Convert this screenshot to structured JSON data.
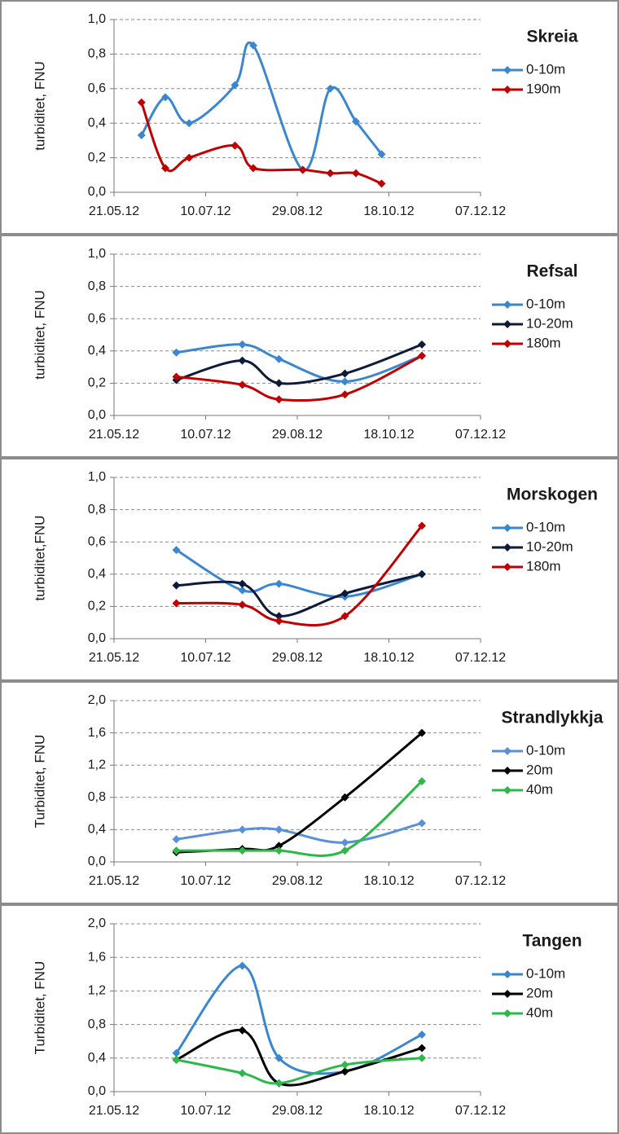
{
  "chart_data": [
    {
      "type": "line",
      "title": "Skreia",
      "y_label": "turbiditet, FNU",
      "x": [
        "2012-06-05",
        "2012-06-18",
        "2012-07-01",
        "2012-07-26",
        "2012-08-05",
        "2012-09-01",
        "2012-09-16",
        "2012-09-30",
        "2012-10-14"
      ],
      "series": [
        {
          "name": "0-10m",
          "color": "#3b87cf",
          "values": [
            0.33,
            0.55,
            0.4,
            0.62,
            0.85,
            0.13,
            0.6,
            0.41,
            0.22
          ]
        },
        {
          "name": "190m",
          "color": "#c00000",
          "values": [
            0.52,
            0.14,
            0.2,
            0.27,
            0.14,
            0.13,
            0.11,
            0.11,
            0.05
          ]
        }
      ],
      "xlim": [
        "2012-05-21",
        "2012-12-07"
      ],
      "xticks": [
        {
          "value": "2012-05-21",
          "label": "21.05.12"
        },
        {
          "value": "2012-07-10",
          "label": "10.07.12"
        },
        {
          "value": "2012-08-29",
          "label": "29.08.12"
        },
        {
          "value": "2012-10-18",
          "label": "18.10.12"
        },
        {
          "value": "2012-12-07",
          "label": "07.12.12"
        }
      ],
      "ylim": [
        0,
        1.0
      ],
      "yticks": [
        {
          "value": 0,
          "label": "0,0"
        },
        {
          "value": 0.2,
          "label": "0,2"
        },
        {
          "value": 0.4,
          "label": "0,4"
        },
        {
          "value": 0.6,
          "label": "0,6"
        },
        {
          "value": 0.8,
          "label": "0,8"
        },
        {
          "value": 1.0,
          "label": "1,0"
        }
      ],
      "grid": true
    },
    {
      "type": "line",
      "title": "Refsal",
      "y_label": "turbiditet, FNU",
      "x": [
        "2012-06-24",
        "2012-07-30",
        "2012-08-19",
        "2012-09-24",
        "2012-11-05"
      ],
      "series": [
        {
          "name": "0-10m",
          "color": "#3b87cf",
          "values": [
            0.39,
            0.44,
            0.35,
            0.21,
            0.37
          ]
        },
        {
          "name": "10-20m",
          "color": "#0d1a3a",
          "values": [
            0.22,
            0.34,
            0.2,
            0.26,
            0.44
          ]
        },
        {
          "name": "180m",
          "color": "#c00000",
          "values": [
            0.24,
            0.19,
            0.1,
            0.13,
            0.37
          ]
        }
      ],
      "xlim": [
        "2012-05-21",
        "2012-12-07"
      ],
      "xticks": [
        {
          "value": "2012-05-21",
          "label": "21.05.12"
        },
        {
          "value": "2012-07-10",
          "label": "10.07.12"
        },
        {
          "value": "2012-08-29",
          "label": "29.08.12"
        },
        {
          "value": "2012-10-18",
          "label": "18.10.12"
        },
        {
          "value": "2012-12-07",
          "label": "07.12.12"
        }
      ],
      "ylim": [
        0,
        1.0
      ],
      "yticks": [
        {
          "value": 0,
          "label": "0,0"
        },
        {
          "value": 0.2,
          "label": "0,2"
        },
        {
          "value": 0.4,
          "label": "0,4"
        },
        {
          "value": 0.6,
          "label": "0,6"
        },
        {
          "value": 0.8,
          "label": "0,8"
        },
        {
          "value": 1.0,
          "label": "1,0"
        }
      ],
      "grid": true
    },
    {
      "type": "line",
      "title": "Morskogen",
      "y_label": "turbiditet,FNU",
      "x": [
        "2012-06-24",
        "2012-07-30",
        "2012-08-19",
        "2012-09-24",
        "2012-11-05"
      ],
      "series": [
        {
          "name": "0-10m",
          "color": "#3b87cf",
          "values": [
            0.55,
            0.3,
            0.34,
            0.26,
            0.4
          ]
        },
        {
          "name": "10-20m",
          "color": "#0d1a3a",
          "values": [
            0.33,
            0.34,
            0.14,
            0.28,
            0.4
          ]
        },
        {
          "name": "180m",
          "color": "#c00000",
          "values": [
            0.22,
            0.21,
            0.11,
            0.14,
            0.7
          ]
        }
      ],
      "xlim": [
        "2012-05-21",
        "2012-12-07"
      ],
      "xticks": [
        {
          "value": "2012-05-21",
          "label": "21.05.12"
        },
        {
          "value": "2012-07-10",
          "label": "10.07.12"
        },
        {
          "value": "2012-08-29",
          "label": "29.08.12"
        },
        {
          "value": "2012-10-18",
          "label": "18.10.12"
        },
        {
          "value": "2012-12-07",
          "label": "07.12.12"
        }
      ],
      "ylim": [
        0,
        1.0
      ],
      "yticks": [
        {
          "value": 0,
          "label": "0,0"
        },
        {
          "value": 0.2,
          "label": "0,2"
        },
        {
          "value": 0.4,
          "label": "0,4"
        },
        {
          "value": 0.6,
          "label": "0,6"
        },
        {
          "value": 0.8,
          "label": "0,8"
        },
        {
          "value": 1.0,
          "label": "1,0"
        }
      ],
      "grid": true
    },
    {
      "type": "line",
      "title": "Strandlykkja",
      "y_label": "Turbiditet, FNU",
      "x": [
        "2012-06-24",
        "2012-07-30",
        "2012-08-19",
        "2012-09-24",
        "2012-11-05"
      ],
      "series": [
        {
          "name": "0-10m",
          "color": "#5b8fd6",
          "values": [
            0.28,
            0.4,
            0.4,
            0.24,
            0.48
          ]
        },
        {
          "name": "20m",
          "color": "#000000",
          "values": [
            0.12,
            0.16,
            0.2,
            0.8,
            1.6
          ]
        },
        {
          "name": "40m",
          "color": "#2db84a",
          "values": [
            0.14,
            0.14,
            0.14,
            0.14,
            1.0
          ]
        }
      ],
      "xlim": [
        "2012-05-21",
        "2012-12-07"
      ],
      "xticks": [
        {
          "value": "2012-05-21",
          "label": "21.05.12"
        },
        {
          "value": "2012-07-10",
          "label": "10.07.12"
        },
        {
          "value": "2012-08-29",
          "label": "29.08.12"
        },
        {
          "value": "2012-10-18",
          "label": "18.10.12"
        },
        {
          "value": "2012-12-07",
          "label": "07.12.12"
        }
      ],
      "ylim": [
        0,
        2.0
      ],
      "yticks": [
        {
          "value": 0,
          "label": "0,0"
        },
        {
          "value": 0.4,
          "label": "0,4"
        },
        {
          "value": 0.8,
          "label": "0,8"
        },
        {
          "value": 1.2,
          "label": "1,2"
        },
        {
          "value": 1.6,
          "label": "1,6"
        },
        {
          "value": 2.0,
          "label": "2,0"
        }
      ],
      "grid": true
    },
    {
      "type": "line",
      "title": "Tangen",
      "y_label": "Turbiditet, FNU",
      "x": [
        "2012-06-24",
        "2012-07-30",
        "2012-08-19",
        "2012-09-24",
        "2012-11-05"
      ],
      "series": [
        {
          "name": "0-10m",
          "color": "#3b87cf",
          "values": [
            0.46,
            1.5,
            0.4,
            0.24,
            0.68
          ]
        },
        {
          "name": "20m",
          "color": "#000000",
          "values": [
            0.38,
            0.73,
            0.1,
            0.24,
            0.52
          ]
        },
        {
          "name": "40m",
          "color": "#2db84a",
          "values": [
            0.38,
            0.22,
            0.1,
            0.32,
            0.4
          ]
        }
      ],
      "xlim": [
        "2012-05-21",
        "2012-12-07"
      ],
      "xticks": [
        {
          "value": "2012-05-21",
          "label": "21.05.12"
        },
        {
          "value": "2012-07-10",
          "label": "10.07.12"
        },
        {
          "value": "2012-08-29",
          "label": "29.08.12"
        },
        {
          "value": "2012-10-18",
          "label": "18.10.12"
        },
        {
          "value": "2012-12-07",
          "label": "07.12.12"
        }
      ],
      "ylim": [
        0,
        2.0
      ],
      "yticks": [
        {
          "value": 0,
          "label": "0,0"
        },
        {
          "value": 0.4,
          "label": "0,4"
        },
        {
          "value": 0.8,
          "label": "0,8"
        },
        {
          "value": 1.2,
          "label": "1,2"
        },
        {
          "value": 1.6,
          "label": "1,6"
        },
        {
          "value": 2.0,
          "label": "2,0"
        }
      ],
      "grid": true
    }
  ]
}
